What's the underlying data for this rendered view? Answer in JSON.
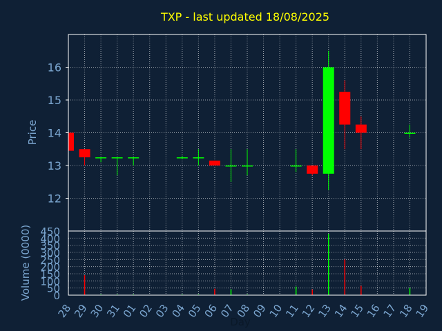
{
  "chart_data": {
    "type": "candlestick",
    "title": "TXP - last updated 18/08/2025",
    "xlabel": "Day",
    "ylabel_price": "Price",
    "ylabel_volume": "Volume (0000)",
    "x_ticks": [
      "28",
      "29",
      "30",
      "31",
      "01",
      "02",
      "03",
      "04",
      "05",
      "06",
      "07",
      "08",
      "09",
      "10",
      "11",
      "12",
      "13",
      "14",
      "15",
      "16",
      "17",
      "18",
      "19"
    ],
    "price_ticks": [
      12,
      13,
      14,
      15,
      16
    ],
    "price_range": [
      11.0,
      17.0
    ],
    "volume_ticks": [
      0,
      50,
      100,
      150,
      200,
      250,
      300,
      350,
      400,
      450
    ],
    "volume_range": [
      0,
      450
    ],
    "grid": true,
    "colors": {
      "up": "#00ff00",
      "down": "#ff0000",
      "neutral": "#00ff00",
      "title": "#ffff00",
      "axis_text": "#7ba6d0",
      "grid": "#ffffff"
    },
    "candles": [
      {
        "x": "28",
        "open": 14.0,
        "high": 14.0,
        "low": 13.45,
        "close": 13.45,
        "volume": 0
      },
      {
        "x": "29",
        "open": 13.5,
        "high": 13.5,
        "low": 13.0,
        "close": 13.25,
        "volume": 140
      },
      {
        "x": "30",
        "open": 13.25,
        "high": 13.25,
        "low": 13.1,
        "close": 13.25,
        "volume": 5
      },
      {
        "x": "31",
        "open": 13.25,
        "high": 13.25,
        "low": 12.7,
        "close": 13.25,
        "volume": 5
      },
      {
        "x": "01",
        "open": 13.25,
        "high": 13.25,
        "low": 13.0,
        "close": 13.25,
        "volume": 5
      },
      {
        "x": "04",
        "open": 13.25,
        "high": 13.3,
        "low": 13.2,
        "close": 13.25,
        "volume": 5
      },
      {
        "x": "05",
        "open": 13.25,
        "high": 13.5,
        "low": 13.0,
        "close": 13.25,
        "volume": 5
      },
      {
        "x": "06",
        "open": 13.15,
        "high": 13.15,
        "low": 13.0,
        "close": 13.0,
        "volume": 45
      },
      {
        "x": "07",
        "open": 13.0,
        "high": 13.5,
        "low": 12.5,
        "close": 13.0,
        "volume": 40
      },
      {
        "x": "08",
        "open": 13.0,
        "high": 13.5,
        "low": 12.7,
        "close": 13.0,
        "volume": 5
      },
      {
        "x": "11",
        "open": 13.0,
        "high": 13.5,
        "low": 12.8,
        "close": 13.0,
        "volume": 60
      },
      {
        "x": "12",
        "open": 13.0,
        "high": 13.0,
        "low": 12.7,
        "close": 12.75,
        "volume": 40
      },
      {
        "x": "13",
        "open": 12.75,
        "high": 16.5,
        "low": 12.25,
        "close": 16.0,
        "volume": 430
      },
      {
        "x": "14",
        "open": 15.25,
        "high": 15.6,
        "low": 13.5,
        "close": 14.25,
        "volume": 250
      },
      {
        "x": "15",
        "open": 14.25,
        "high": 14.5,
        "low": 13.5,
        "close": 14.0,
        "volume": 65
      },
      {
        "x": "18",
        "open": 14.0,
        "high": 14.25,
        "low": 13.85,
        "close": 14.0,
        "volume": 50
      }
    ]
  }
}
